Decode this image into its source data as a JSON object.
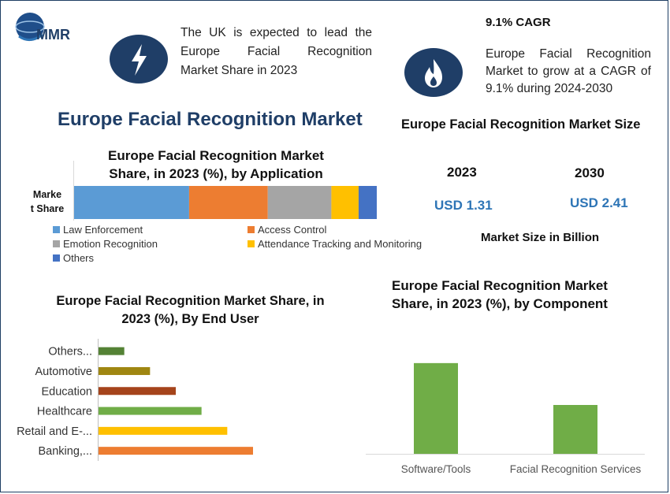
{
  "brand": {
    "logo_text": "MMR"
  },
  "highlight_uk": {
    "lines": [
      "The UK is expected to lead the",
      "Europe Facial Recognition",
      "Market Share in 2023"
    ],
    "icon": "lightning-icon"
  },
  "highlight_cagr": {
    "title": "9.1% CAGR",
    "lines": [
      "Europe Facial Recognition",
      "Market to grow at a CAGR of",
      "9.1% during 2024-2030"
    ],
    "icon": "flame-icon"
  },
  "main_title": "Europe Facial Recognition Market",
  "market_size": {
    "title": "Europe Facial Recognition Market Size",
    "year1": "2023",
    "value1": "USD 1.31",
    "year2": "2030",
    "value2": "USD 2.41",
    "unit_label": "Market Size in Billion"
  },
  "colors": {
    "navy": "#1f3e67",
    "blue": "#2e75b6"
  },
  "chart_data": [
    {
      "type": "bar",
      "orientation": "horizontal-stacked",
      "title_lines": [
        "Europe Facial Recognition Market",
        "Share, in 2023 (%), by Application"
      ],
      "category_label_lines": [
        "Marke",
        "t Share"
      ],
      "series": [
        {
          "name": "Law Enforcement",
          "value": 38,
          "color": "#5b9bd5"
        },
        {
          "name": "Access Control",
          "value": 26,
          "color": "#ed7d31"
        },
        {
          "name": "Emotion Recognition",
          "value": 21,
          "color": "#a5a5a5"
        },
        {
          "name": "Attendance Tracking and Monitoring",
          "value": 9,
          "color": "#ffc000"
        },
        {
          "name": "Others",
          "value": 6,
          "color": "#4472c4"
        }
      ],
      "xlim": [
        0,
        100
      ]
    },
    {
      "type": "bar",
      "orientation": "horizontal",
      "title_lines": [
        "Europe Facial Recognition Market Share, in",
        "2023 (%), By End User"
      ],
      "categories": [
        "Others...",
        "Automotive",
        "Education",
        "Healthcare",
        "Retail and E-...",
        "Banking,..."
      ],
      "values": [
        5,
        10,
        15,
        20,
        25,
        30
      ],
      "colors": [
        "#548235",
        "#9f8611",
        "#a5441b",
        "#70ad47",
        "#ffc000",
        "#ed7d31"
      ],
      "xlim": [
        0,
        30
      ]
    },
    {
      "type": "bar",
      "orientation": "vertical",
      "title_lines": [
        "Europe Facial Recognition Market",
        "Share, in 2023 (%), by Component"
      ],
      "categories": [
        "Software/Tools",
        "Facial Recognition Services"
      ],
      "values": [
        65,
        35
      ],
      "color": "#70ad47",
      "ylim": [
        0,
        70
      ]
    }
  ]
}
